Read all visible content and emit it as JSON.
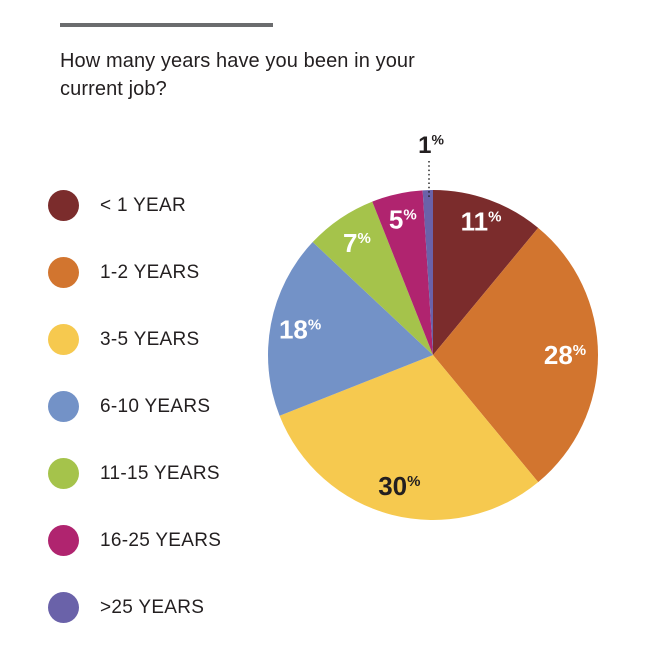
{
  "chart_data": {
    "type": "pie",
    "title": "How many years have you been in your current job?",
    "unit": "%",
    "start_angle_deg": 0,
    "direction": "clockwise",
    "legend_position": "left",
    "slices": [
      {
        "label": "< 1 YEAR",
        "value": 11,
        "color": "#7B2C2C",
        "text_color": "#FFFFFF",
        "label_r": 0.86
      },
      {
        "label": "1-2 YEARS",
        "value": 28,
        "color": "#D2752F",
        "text_color": "#FFFFFF",
        "label_r": 0.8
      },
      {
        "label": "3-5 YEARS",
        "value": 30,
        "color": "#F6C94F",
        "text_color": "#231F20",
        "label_r": 0.82
      },
      {
        "label": "6-10 YEARS",
        "value": 18,
        "color": "#7392C7",
        "text_color": "#FFFFFF",
        "label_r": 0.82
      },
      {
        "label": "11-15 YEARS",
        "value": 7,
        "color": "#A5C34B",
        "text_color": "#FFFFFF",
        "label_r": 0.82
      },
      {
        "label": "16-25 YEARS",
        "value": 5,
        "color": "#B0246F",
        "text_color": "#FFFFFF",
        "label_r": 0.84
      },
      {
        "label": ">25 YEARS",
        "value": 1,
        "color": "#6A62A9",
        "text_color": "#231F20",
        "label_outside": true
      }
    ]
  },
  "styles": {
    "rule_color": "#6B6C6E",
    "text_color": "#231F20",
    "leader_line_color": "#1A1A1A"
  }
}
